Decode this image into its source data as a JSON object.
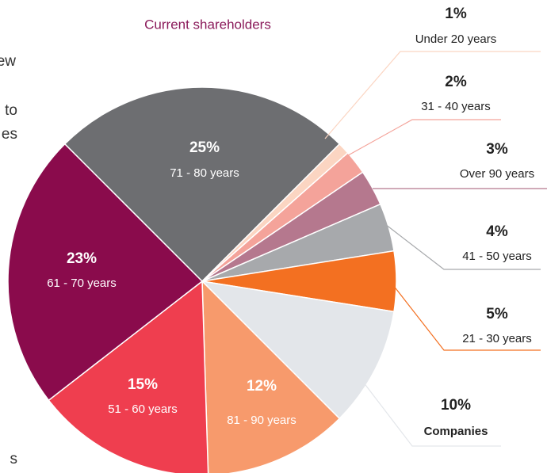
{
  "chart_data": {
    "type": "pie",
    "title": "Current shareholders",
    "categories": [
      "71 - 80 years",
      "Under 20 years",
      "31 - 40 years",
      "Over 90 years",
      "41 - 50 years",
      "21 - 30 years",
      "Companies",
      "81 - 90 years",
      "51 - 60 years",
      "61 - 70 years"
    ],
    "values": [
      25,
      1,
      2,
      3,
      4,
      5,
      10,
      12,
      15,
      23
    ],
    "value_labels": [
      "25%",
      "1%",
      "2%",
      "3%",
      "4%",
      "5%",
      "10%",
      "12%",
      "15%",
      "23%"
    ],
    "colors": [
      "#6d6e71",
      "#fbd5c2",
      "#f4a39a",
      "#b5788e",
      "#a7a9ac",
      "#f37021",
      "#e3e6ea",
      "#f79a6c",
      "#ef3e4f",
      "#8a0b4c"
    ]
  },
  "background_text": [
    "new",
    "g to",
    "es",
    "s"
  ]
}
